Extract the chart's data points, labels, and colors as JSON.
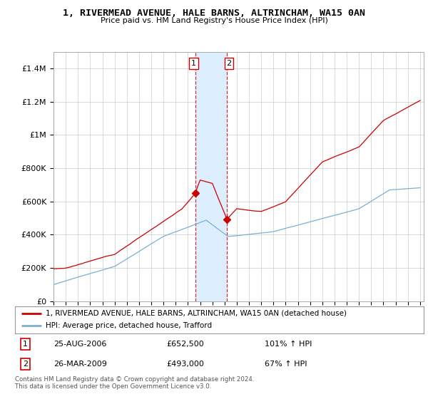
{
  "title": "1, RIVERMEAD AVENUE, HALE BARNS, ALTRINCHAM, WA15 0AN",
  "subtitle": "Price paid vs. HM Land Registry's House Price Index (HPI)",
  "sale1_date": "25-AUG-2006",
  "sale1_price": 652500,
  "sale1_label": "101% ↑ HPI",
  "sale2_date": "26-MAR-2009",
  "sale2_price": 493000,
  "sale2_label": "67% ↑ HPI",
  "legend_entry1": "1, RIVERMEAD AVENUE, HALE BARNS, ALTRINCHAM, WA15 0AN (detached house)",
  "legend_entry2": "HPI: Average price, detached house, Trafford",
  "footer": "Contains HM Land Registry data © Crown copyright and database right 2024.\nThis data is licensed under the Open Government Licence v3.0.",
  "line_color_red": "#cc0000",
  "line_color_blue": "#7aafd4",
  "shade_color": "#ddeeff",
  "background_color": "#ffffff",
  "ylim": [
    0,
    1500000
  ],
  "yticks": [
    0,
    200000,
    400000,
    600000,
    800000,
    1000000,
    1200000,
    1400000
  ],
  "ytick_labels": [
    "£0",
    "£200K",
    "£400K",
    "£600K",
    "£800K",
    "£1M",
    "£1.2M",
    "£1.4M"
  ],
  "sale1_year": 2006.622,
  "sale2_year": 2009.205,
  "xstart_year": 1995,
  "xend_year": 2025
}
